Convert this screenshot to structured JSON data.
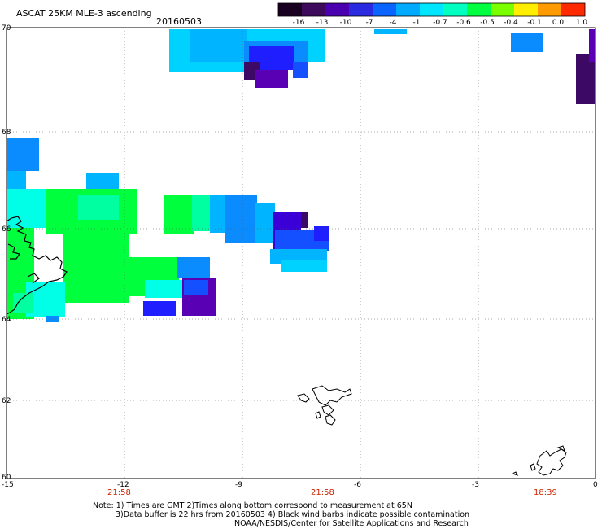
{
  "title": "ASCAT 25KM MLE-3 ascending",
  "date": "20160503",
  "colorbar": {
    "labels": [
      "-16",
      "-13",
      "-10",
      "-7",
      "-4",
      "-1",
      "-0.7",
      "-0.6",
      "-0.5",
      "-0.4",
      "-0.1",
      "0.0",
      "1.0"
    ],
    "colors": [
      "#1a0020",
      "#3d0a5c",
      "#4b00b0",
      "#2a2ae0",
      "#0a64ff",
      "#00aaff",
      "#00e6ff",
      "#00ffc0",
      "#00ff40",
      "#7aff00",
      "#ffee00",
      "#ff9a00",
      "#ff2a00"
    ]
  },
  "axes": {
    "lon_ticks": [
      "-15",
      "-12",
      "-9",
      "-6",
      "-3",
      "0"
    ],
    "lat_ticks": [
      "70",
      "68",
      "66",
      "64",
      "62",
      "60"
    ]
  },
  "times": [
    "21:58",
    "21:58",
    "18:39"
  ],
  "notes": [
    "Note: 1) Times are GMT 2)Times along bottom correspond to measurement at 65N",
    "3)Data buffer is 22 hrs from 20160503 4) Black wind barbs indicate possible contamination",
    "NOAA/NESDIS/Center for Satellite Applications and Research"
  ],
  "swath_colors": {
    "light_cyan": "#00d2ff",
    "sky": "#00b4ff",
    "azure": "#0a8cff",
    "blue": "#1450ff",
    "deep_blue": "#1e1eff",
    "indigo": "#3a00d6",
    "purple": "#5a00b4",
    "dark_purple": "#3c0a64",
    "green": "#00ff3c",
    "mint": "#00ffa0",
    "aqua": "#00ffe6"
  }
}
